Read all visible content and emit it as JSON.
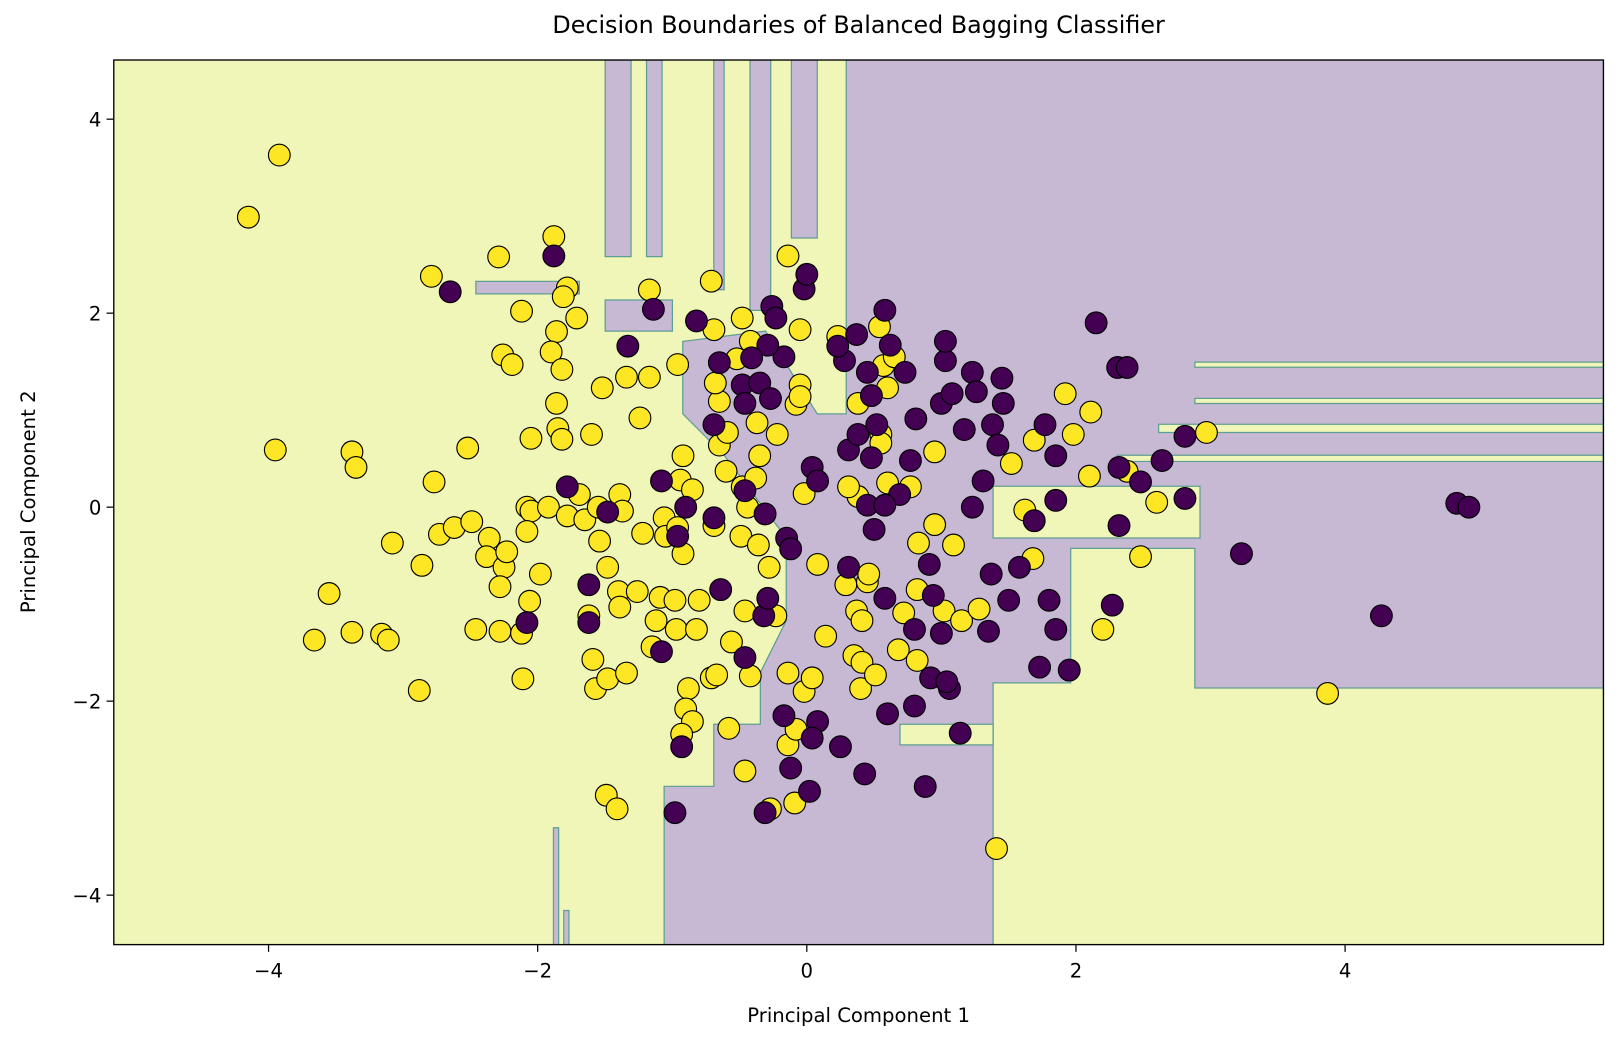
{
  "chart_data": {
    "type": "scatter",
    "title": "Decision Boundaries of Balanced Bagging Classifier",
    "xlabel": "Principal Component 1",
    "ylabel": "Principal Component 2",
    "xlim": [
      -5.15,
      5.92
    ],
    "ylim": [
      -4.51,
      4.61
    ],
    "xticks": [
      {
        "value": -4,
        "label": "−4"
      },
      {
        "value": -2,
        "label": "−2"
      },
      0,
      2,
      4
    ],
    "yticks": [
      {
        "value": -4,
        "label": "−4"
      },
      {
        "value": -2,
        "label": "−2"
      },
      0,
      2,
      4
    ],
    "series": [
      {
        "color": "#fde725",
        "x": [
          -3.92,
          -4.15,
          -3.95,
          -3.38,
          -3.35,
          -2.77,
          -2.52,
          -2.79,
          -2.29,
          -2.26,
          -2.12,
          -2.19,
          -1.88,
          -1.78,
          -1.81,
          -1.71,
          -1.86,
          -1.9,
          -1.82,
          -1.86,
          -1.85,
          -1.82,
          -2.05,
          -1.6,
          -1.52,
          -1.34,
          -1.17,
          -1.24,
          -1.17,
          -0.96,
          -0.71,
          -0.14,
          -3.08,
          -2.86,
          -2.73,
          -2.62,
          -2.49,
          -2.36,
          -2.38,
          -2.25,
          -2.23,
          -2.28,
          -2.08,
          -2.05,
          -2.08,
          -1.98,
          -2.06,
          -3.55,
          -3.66,
          -3.38,
          -3.16,
          -3.11,
          -2.88,
          -2.46,
          -2.28,
          -2.12,
          -2.11,
          -1.92,
          -1.78,
          -1.69,
          -1.65,
          -1.55,
          -1.54,
          -1.48,
          -1.39,
          -1.37,
          -1.22,
          -1.06,
          -1.05,
          -1.62,
          -1.4,
          -1.39,
          -1.26,
          -1.09,
          -1.12,
          -0.98,
          -0.97,
          -1.15,
          -1.59,
          -1.57,
          -1.48,
          -1.34,
          -1.49,
          -1.41,
          -0.92,
          -0.94,
          -0.85,
          -0.96,
          -0.92,
          -0.69,
          -0.65,
          -0.68,
          -0.69,
          -0.48,
          -0.52,
          -0.42,
          -0.65,
          -0.59,
          -0.6,
          -0.48,
          -0.44,
          -0.49,
          -0.36,
          -0.38,
          -0.35,
          -0.37,
          -0.28,
          -0.23,
          -0.46,
          -0.56,
          -0.8,
          -0.82,
          -0.71,
          -0.67,
          -0.88,
          -0.9,
          -0.85,
          -0.93,
          -0.58,
          -0.46,
          -0.42,
          -0.27,
          -0.09,
          -0.14,
          -0.02,
          0.04,
          -0.14,
          -0.08,
          0.08,
          0.14,
          -0.05,
          -0.08,
          -0.05,
          -0.05,
          -0.22,
          -0.02,
          0.23,
          0.38,
          0.38,
          0.31,
          0.29,
          0.45,
          0.46,
          0.37,
          0.41,
          0.35,
          0.41,
          0.4,
          0.51,
          0.55,
          0.55,
          0.6,
          0.57,
          0.54,
          0.65,
          0.6,
          0.68,
          0.72,
          0.82,
          0.83,
          0.95,
          0.95,
          1.02,
          1.09,
          1.15,
          1.28,
          1.52,
          1.62,
          1.68,
          1.69,
          1.92,
          1.98,
          2.11,
          2.1,
          2.2,
          2.38,
          2.48,
          2.6,
          2.97,
          3.87,
          1.41,
          0.82,
          0.77
        ],
        "y": [
          3.63,
          2.99,
          0.59,
          0.57,
          0.41,
          0.26,
          0.61,
          2.38,
          2.58,
          1.57,
          2.02,
          1.47,
          2.79,
          2.26,
          2.17,
          1.95,
          1.81,
          1.6,
          1.42,
          1.07,
          0.81,
          0.7,
          0.71,
          0.75,
          1.23,
          1.34,
          1.34,
          0.92,
          2.24,
          1.47,
          2.33,
          2.59,
          -0.37,
          -0.6,
          -0.28,
          -0.21,
          -0.15,
          -0.32,
          -0.51,
          -0.62,
          -0.46,
          -0.82,
          0,
          -0.04,
          -0.25,
          -0.69,
          -0.97,
          -0.89,
          -1.37,
          -1.29,
          -1.31,
          -1.37,
          -1.89,
          -1.26,
          -1.28,
          -1.3,
          -1.77,
          0,
          -0.09,
          0.13,
          -0.13,
          0,
          -0.35,
          -0.62,
          0.13,
          -0.04,
          -0.27,
          -0.11,
          -0.3,
          -1.12,
          -0.87,
          -1.03,
          -0.87,
          -0.93,
          -1.17,
          -0.96,
          -1.26,
          -1.44,
          -1.57,
          -1.87,
          -1.77,
          -1.71,
          -2.97,
          -3.11,
          0.53,
          0.28,
          0.18,
          -0.21,
          -0.48,
          -0.19,
          1.09,
          1.28,
          1.83,
          1.95,
          1.53,
          1.71,
          0.64,
          0.77,
          0.37,
          0.21,
          0,
          -0.3,
          -0.39,
          0.3,
          0.53,
          0.87,
          -0.62,
          -1.12,
          -1.07,
          -1.39,
          -0.96,
          -1.26,
          -1.76,
          -1.73,
          -1.87,
          -2.08,
          -2.21,
          -2.34,
          -2.28,
          -2.72,
          -1.74,
          -3.11,
          -3.05,
          -1.71,
          -1.9,
          -1.76,
          -2.45,
          -2.29,
          -0.59,
          -1.33,
          1.26,
          1.06,
          1.14,
          1.83,
          0.75,
          0.14,
          1.76,
          1.07,
          0.11,
          0.21,
          -0.8,
          -0.77,
          -0.69,
          -1.07,
          -1.17,
          -1.53,
          -1.6,
          -1.87,
          -1.73,
          0.75,
          0.66,
          1.23,
          1.46,
          1.86,
          1.55,
          0.25,
          -1.47,
          -1.09,
          -1.58,
          -0.37,
          0.57,
          -0.18,
          -1.07,
          -0.39,
          -1.17,
          -1.05,
          0.45,
          -0.03,
          -0.53,
          0.69,
          1.17,
          0.75,
          0.98,
          0.32,
          -1.26,
          0.37,
          -0.51,
          0.05,
          0.77,
          -1.92,
          -3.52,
          -0.85,
          0.21
        ]
      },
      {
        "color": "#440154",
        "x": [
          -1.88,
          -2.65,
          -1.14,
          -1.33,
          -0.82,
          -0.26,
          -0.23,
          -0.02,
          -0.17,
          -0.29,
          -0.48,
          -0.35,
          -0.41,
          -0.65,
          -0.69,
          -0.46,
          -0.27,
          -1.78,
          -1.08,
          -0.9,
          -0.96,
          -1.48,
          -1.62,
          -1.62,
          -2.08,
          -1.08,
          -0.69,
          -0.64,
          -0.46,
          -0.32,
          -0.29,
          -0.46,
          -0.31,
          -0.15,
          -0.12,
          0.04,
          0.08,
          0.31,
          0.38,
          0.48,
          0.52,
          0.48,
          0.45,
          0.28,
          0.23,
          0.37,
          0.58,
          0.62,
          0.73,
          0.81,
          0.77,
          0.69,
          0.45,
          0.58,
          0.5,
          0.31,
          0.58,
          0.6,
          0.43,
          0.88,
          0.8,
          0.92,
          0.8,
          0.94,
          0.91,
          1.03,
          1.03,
          1.0,
          1.08,
          1.23,
          1.26,
          1.17,
          1.38,
          1.45,
          1.46,
          1.42,
          1.31,
          1.23,
          1.37,
          1.5,
          1.58,
          1.73,
          1.95,
          1.8,
          1.85,
          1.69,
          1.85,
          1.85,
          1.77,
          2.15,
          2.31,
          2.38,
          2.32,
          2.32,
          2.48,
          2.64,
          2.81,
          2.81,
          2.27,
          3.23,
          4.27,
          4.83,
          4.92,
          1.14,
          1.06,
          1.04,
          1.0,
          0,
          -0.98,
          -0.31,
          0.02,
          -0.17,
          -0.12,
          0.08,
          0.25,
          0.04,
          -0.93,
          1.35
        ],
        "y": [
          2.59,
          2.22,
          2.04,
          1.66,
          1.92,
          2.07,
          1.95,
          2.25,
          1.55,
          1.67,
          1.26,
          1.28,
          1.54,
          1.49,
          0.85,
          1.07,
          1.12,
          0.21,
          0.27,
          0,
          -0.3,
          -0.05,
          -0.8,
          -1.19,
          -1.19,
          -1.49,
          -0.11,
          -0.85,
          -1.55,
          -1.12,
          -0.94,
          0.17,
          -0.07,
          -0.32,
          -0.43,
          0.41,
          0.27,
          0.59,
          0.75,
          0.51,
          0.85,
          1.15,
          1.39,
          1.51,
          1.66,
          1.78,
          2.03,
          1.67,
          1.39,
          0.91,
          0.48,
          0.13,
          0.02,
          0.02,
          -0.23,
          -0.62,
          -0.94,
          -2.13,
          -2.75,
          -2.88,
          -2.05,
          -1.76,
          -1.26,
          -0.91,
          -0.59,
          1.51,
          1.71,
          1.07,
          1.17,
          1.39,
          1.19,
          0.8,
          0.85,
          1.33,
          1.07,
          0.64,
          0.27,
          0,
          -0.69,
          -0.96,
          -0.62,
          -1.65,
          -1.68,
          -0.96,
          -1.26,
          -0.14,
          0.07,
          0.53,
          0.85,
          1.9,
          1.44,
          1.44,
          0.41,
          -0.19,
          0.26,
          0.48,
          0.09,
          0.73,
          -1.01,
          -0.48,
          -1.12,
          0.04,
          0,
          -2.33,
          -1.87,
          -1.8,
          -1.3,
          2.4,
          -3.15,
          -3.15,
          -2.93,
          -2.15,
          -2.69,
          -2.21,
          -2.47,
          -2.38,
          -2.47,
          -1.28
        ]
      }
    ]
  }
}
